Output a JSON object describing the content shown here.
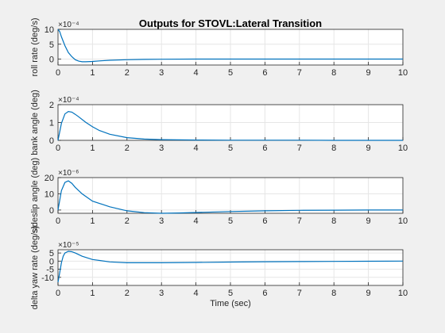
{
  "figure": {
    "title": "Outputs for STOVL:Lateral Transition",
    "xlabel": "Time (sec)",
    "background": "#f0f0f0",
    "axes_color": "#ffffff",
    "grid_color": "#e6e6e6",
    "line_color": "#0072bd"
  },
  "chart_data": [
    {
      "type": "line",
      "ylabel": "roll rate (deg/s)",
      "exponent": "×10⁻⁴",
      "xlim": [
        0,
        10
      ],
      "ylim": [
        -2,
        10
      ],
      "xticks": [
        0,
        1,
        2,
        3,
        4,
        5,
        6,
        7,
        8,
        9,
        10
      ],
      "yticks": [
        0,
        5,
        10
      ],
      "grid": true,
      "x": [
        0,
        0.05,
        0.1,
        0.2,
        0.3,
        0.4,
        0.5,
        0.6,
        0.7,
        0.8,
        1.0,
        1.2,
        1.5,
        2,
        2.5,
        3,
        4,
        5,
        6,
        7,
        8,
        9,
        10
      ],
      "y": [
        10,
        9.2,
        7.5,
        4.5,
        2.2,
        0.8,
        -0.2,
        -0.7,
        -0.9,
        -0.9,
        -0.8,
        -0.6,
        -0.4,
        -0.2,
        -0.1,
        -0.05,
        0,
        0,
        0,
        0,
        0,
        0,
        0
      ]
    },
    {
      "type": "line",
      "ylabel": "bank angle (deg)",
      "exponent": "×10⁻⁴",
      "xlim": [
        0,
        10
      ],
      "ylim": [
        0,
        2
      ],
      "xticks": [
        0,
        1,
        2,
        3,
        4,
        5,
        6,
        7,
        8,
        9,
        10
      ],
      "yticks": [
        0,
        1,
        2
      ],
      "grid": true,
      "x": [
        0,
        0.1,
        0.2,
        0.3,
        0.4,
        0.5,
        0.6,
        0.8,
        1.0,
        1.2,
        1.5,
        2,
        2.5,
        3,
        4,
        5,
        6,
        7,
        8,
        9,
        10
      ],
      "y": [
        0,
        0.95,
        1.48,
        1.62,
        1.58,
        1.46,
        1.32,
        1.02,
        0.76,
        0.55,
        0.34,
        0.15,
        0.07,
        0.04,
        0.02,
        0.01,
        0.01,
        0.01,
        0,
        0,
        0
      ]
    },
    {
      "type": "line",
      "ylabel": "sideslip angle (deg)",
      "exponent": "×10⁻⁶",
      "xlim": [
        0,
        10
      ],
      "ylim": [
        -2,
        20
      ],
      "xticks": [
        0,
        1,
        2,
        3,
        4,
        5,
        6,
        7,
        8,
        9,
        10
      ],
      "yticks": [
        0,
        10,
        20
      ],
      "grid": true,
      "x": [
        0,
        0.1,
        0.2,
        0.3,
        0.4,
        0.5,
        0.7,
        1.0,
        1.5,
        2,
        2.5,
        3,
        3.5,
        4,
        5,
        6,
        7,
        8,
        9,
        10
      ],
      "y": [
        0,
        12,
        17,
        18,
        16.5,
        14,
        10,
        5.5,
        2,
        -0.5,
        -1.6,
        -2,
        -1.8,
        -1.5,
        -0.9,
        -0.5,
        -0.2,
        -0.1,
        0,
        0
      ]
    },
    {
      "type": "line",
      "ylabel": "delta yaw rate (deg/s)",
      "exponent": "×10⁻⁵",
      "xlim": [
        0,
        10
      ],
      "ylim": [
        -15,
        7
      ],
      "xticks": [
        0,
        1,
        2,
        3,
        4,
        5,
        6,
        7,
        8,
        9,
        10
      ],
      "yticks": [
        -10,
        -5,
        0,
        5
      ],
      "grid": true,
      "x": [
        0,
        0.05,
        0.1,
        0.15,
        0.2,
        0.3,
        0.4,
        0.5,
        0.7,
        1.0,
        1.5,
        2,
        3,
        4,
        5,
        6,
        7,
        8,
        9,
        10
      ],
      "y": [
        -13,
        -7,
        -1,
        3,
        5,
        6,
        5.8,
        5,
        3,
        1,
        -0.5,
        -1,
        -1,
        -0.8,
        -0.6,
        -0.4,
        -0.3,
        -0.2,
        -0.1,
        0
      ]
    }
  ]
}
